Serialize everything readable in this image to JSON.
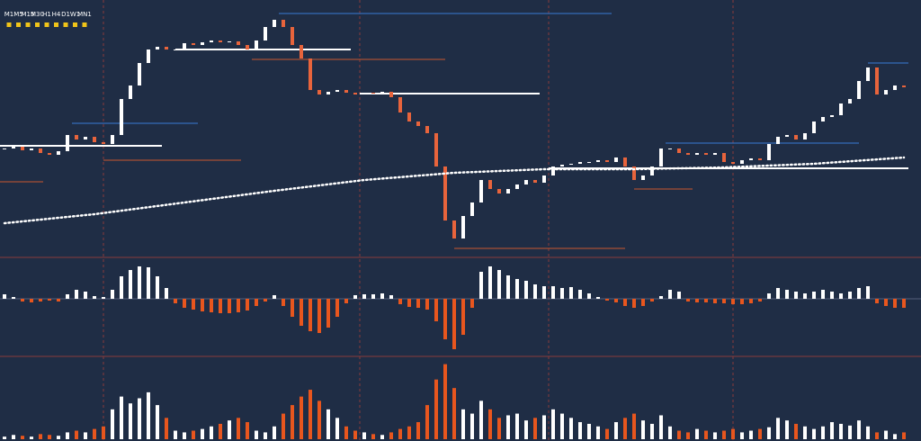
{
  "timeframes": [
    "M1",
    "M5",
    "M15",
    "M30",
    "H1",
    "H4",
    "D1",
    "W1",
    "MN1"
  ],
  "colors": {
    "up": "#ffffff",
    "down": "#e8643c",
    "osc_down": "#e8561e",
    "ma": "#ffffff"
  },
  "price": {
    "ylim": [
      15,
      300
    ],
    "close": [
      135,
      137,
      133,
      135,
      130,
      128,
      132,
      150,
      145,
      148,
      142,
      140,
      150,
      190,
      205,
      230,
      245,
      248,
      245,
      245,
      252,
      250,
      253,
      255,
      253,
      254,
      250,
      245,
      255,
      270,
      278,
      270,
      250,
      235,
      200,
      195,
      198,
      200,
      197,
      195,
      197,
      196,
      198,
      192,
      175,
      165,
      160,
      152,
      115,
      55,
      35,
      60,
      75,
      100,
      90,
      85,
      90,
      95,
      100,
      97,
      105,
      115,
      117,
      118,
      120,
      120,
      122,
      120,
      125,
      115,
      100,
      105,
      115,
      135,
      135,
      130,
      128,
      130,
      128,
      130,
      120,
      118,
      122,
      124,
      122,
      140,
      148,
      150,
      145,
      152,
      165,
      170,
      172,
      185,
      190,
      210,
      225,
      195,
      200,
      205,
      203
    ],
    "ma": [
      52,
      62,
      75,
      88,
      100,
      108,
      112,
      112,
      114,
      118,
      125
    ]
  },
  "oscillator": {
    "ylim": [
      -63,
      45
    ],
    "values": [
      5,
      2,
      -3,
      -4,
      -3,
      -2,
      -3,
      5,
      10,
      8,
      3,
      2,
      10,
      25,
      32,
      36,
      35,
      25,
      12,
      -5,
      -10,
      -12,
      -14,
      -15,
      -16,
      -16,
      -15,
      -13,
      -8,
      -3,
      4,
      -8,
      -20,
      -30,
      -36,
      -38,
      -32,
      -20,
      -5,
      4,
      5,
      5,
      6,
      4,
      -6,
      -9,
      -10,
      -12,
      -25,
      -45,
      -56,
      -40,
      -10,
      30,
      36,
      32,
      26,
      22,
      20,
      16,
      14,
      14,
      12,
      13,
      10,
      6,
      2,
      -2,
      -4,
      -8,
      -10,
      -8,
      -3,
      3,
      10,
      8,
      -3,
      -4,
      -4,
      -5,
      -5,
      -6,
      -6,
      -5,
      -3,
      6,
      12,
      10,
      8,
      6,
      8,
      10,
      8,
      6,
      8,
      12,
      14,
      -5,
      -8,
      -10,
      -10
    ]
  },
  "volume": {
    "ylim": [
      0,
      95
    ],
    "values": [
      3,
      5,
      4,
      3,
      6,
      5,
      4,
      8,
      10,
      8,
      12,
      15,
      35,
      50,
      42,
      48,
      55,
      40,
      25,
      10,
      8,
      10,
      12,
      15,
      18,
      22,
      25,
      20,
      10,
      8,
      15,
      30,
      40,
      50,
      58,
      45,
      35,
      25,
      15,
      10,
      8,
      6,
      5,
      8,
      12,
      15,
      20,
      40,
      70,
      88,
      60,
      35,
      30,
      45,
      35,
      25,
      28,
      30,
      22,
      25,
      28,
      35,
      30,
      25,
      20,
      18,
      15,
      12,
      20,
      25,
      30,
      22,
      18,
      28,
      15,
      10,
      8,
      12,
      10,
      8,
      10,
      12,
      8,
      10,
      12,
      14,
      25,
      22,
      18,
      15,
      12,
      15,
      20,
      18,
      16,
      22,
      15,
      8,
      10,
      6,
      8
    ]
  }
}
